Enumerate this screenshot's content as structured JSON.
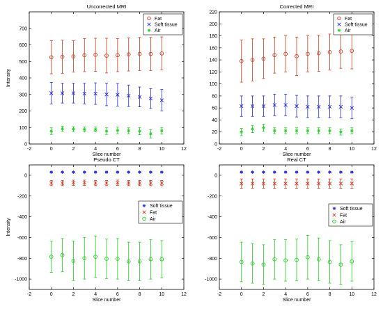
{
  "chart_data": [
    {
      "type": "scatter",
      "title": "Uncorrected MRI",
      "xlabel": "Slice number",
      "ylabel": "Intensity",
      "xlim": [
        -2,
        12
      ],
      "ylim": [
        0,
        800
      ],
      "xticks": [
        "-2",
        "0",
        "2",
        "4",
        "6",
        "8",
        "10",
        "12"
      ],
      "yticks": [
        "0",
        "100",
        "200",
        "300",
        "400",
        "500",
        "600",
        "700"
      ],
      "grid": false,
      "legend": "top-right",
      "x": [
        0,
        1,
        2,
        3,
        4,
        5,
        6,
        7,
        8,
        9,
        10
      ],
      "series": [
        {
          "name": "Fat",
          "marker": "o",
          "color": "#cc3a1f",
          "values": [
            525,
            528,
            530,
            538,
            540,
            535,
            538,
            542,
            545,
            545,
            548
          ],
          "err": [
            100,
            100,
            95,
            100,
            100,
            105,
            100,
            100,
            100,
            100,
            100
          ]
        },
        {
          "name": "Soft tissue",
          "marker": "x",
          "color": "#2a2ad8",
          "values": [
            308,
            308,
            308,
            305,
            305,
            300,
            298,
            292,
            285,
            275,
            265
          ],
          "err": [
            65,
            60,
            60,
            62,
            65,
            68,
            68,
            65,
            60,
            60,
            65
          ]
        },
        {
          "name": "Air",
          "marker": "*",
          "color": "#22cc22",
          "values": [
            78,
            92,
            90,
            88,
            88,
            78,
            82,
            80,
            78,
            62,
            80
          ],
          "err": [
            20,
            15,
            15,
            15,
            15,
            20,
            20,
            18,
            22,
            25,
            20
          ]
        }
      ]
    },
    {
      "type": "scatter",
      "title": "Corrected MRI",
      "xlabel": "Slice number",
      "ylabel": "",
      "xlim": [
        -2,
        12
      ],
      "ylim": [
        0,
        220
      ],
      "xticks": [
        "-2",
        "0",
        "2",
        "4",
        "6",
        "8",
        "10",
        "12"
      ],
      "yticks": [
        "0",
        "20",
        "40",
        "60",
        "80",
        "100",
        "120",
        "140",
        "160",
        "180",
        "200",
        "220"
      ],
      "grid": false,
      "legend": "top-right",
      "x": [
        0,
        1,
        2,
        3,
        4,
        5,
        6,
        7,
        8,
        9,
        10
      ],
      "series": [
        {
          "name": "Fat",
          "marker": "o",
          "color": "#cc3a1f",
          "values": [
            138,
            140,
            142,
            148,
            150,
            146,
            150,
            151,
            153,
            154,
            155
          ],
          "err": [
            35,
            35,
            33,
            30,
            30,
            32,
            30,
            30,
            30,
            28,
            30
          ]
        },
        {
          "name": "Soft tissue",
          "marker": "x",
          "color": "#2a2ad8",
          "values": [
            63,
            63,
            63,
            65,
            65,
            63,
            62,
            62,
            62,
            62,
            60
          ],
          "err": [
            17,
            17,
            17,
            18,
            18,
            18,
            18,
            18,
            18,
            18,
            18
          ]
        },
        {
          "name": "Air",
          "marker": "*",
          "color": "#22cc22",
          "values": [
            20,
            25,
            27,
            22,
            22,
            22,
            22,
            22,
            22,
            20,
            22
          ],
          "err": [
            6,
            6,
            6,
            5,
            5,
            5,
            5,
            5,
            5,
            5,
            5
          ]
        }
      ]
    },
    {
      "type": "scatter",
      "title": "Pseudo CT",
      "xlabel": "Slice number",
      "ylabel": "Intensity",
      "xlim": [
        -2,
        12
      ],
      "ylim": [
        -1100,
        100
      ],
      "xticks": [
        "-2",
        "0",
        "2",
        "4",
        "6",
        "8",
        "10",
        "12"
      ],
      "yticks": [
        "-1000",
        "-800",
        "-600",
        "-400",
        "-200",
        "0"
      ],
      "grid": false,
      "legend": "middle-right",
      "x": [
        0,
        1,
        2,
        3,
        4,
        5,
        6,
        7,
        8,
        9,
        10
      ],
      "series": [
        {
          "name": "Soft tissue",
          "marker": "*",
          "color": "#2a2ad8",
          "values": [
            30,
            30,
            30,
            30,
            30,
            30,
            30,
            30,
            30,
            30,
            30
          ],
          "err": [
            5,
            5,
            5,
            5,
            5,
            5,
            5,
            5,
            5,
            5,
            5
          ]
        },
        {
          "name": "Fat",
          "marker": "x",
          "color": "#cc3a1f",
          "values": [
            -75,
            -75,
            -72,
            -72,
            -75,
            -75,
            -72,
            -75,
            -75,
            -75,
            -75
          ],
          "err": [
            25,
            25,
            25,
            25,
            25,
            25,
            25,
            25,
            25,
            25,
            25
          ]
        },
        {
          "name": "Air",
          "marker": "o",
          "color": "#22cc22",
          "values": [
            -785,
            -770,
            -825,
            -800,
            -785,
            -805,
            -805,
            -830,
            -830,
            -810,
            -810
          ],
          "err": [
            150,
            160,
            190,
            200,
            200,
            190,
            195,
            185,
            185,
            190,
            180
          ]
        }
      ]
    },
    {
      "type": "scatter",
      "title": "Real CT",
      "xlabel": "Slice number",
      "ylabel": "",
      "xlim": [
        -2,
        12
      ],
      "ylim": [
        -1100,
        100
      ],
      "xticks": [
        "-2",
        "0",
        "2",
        "4",
        "6",
        "8",
        "10",
        "12"
      ],
      "yticks": [
        "-1000",
        "-800",
        "-600",
        "-400",
        "-200",
        "0"
      ],
      "grid": false,
      "legend": "middle-right",
      "x": [
        0,
        1,
        2,
        3,
        4,
        5,
        6,
        7,
        8,
        9,
        10
      ],
      "series": [
        {
          "name": "Soft tissue",
          "marker": "*",
          "color": "#2a2ad8",
          "values": [
            30,
            30,
            30,
            30,
            30,
            30,
            30,
            30,
            30,
            30,
            30
          ],
          "err": [
            5,
            5,
            5,
            5,
            5,
            5,
            5,
            5,
            5,
            5,
            5
          ]
        },
        {
          "name": "Fat",
          "marker": "x",
          "color": "#cc3a1f",
          "values": [
            -80,
            -80,
            -80,
            -80,
            -80,
            -80,
            -80,
            -80,
            -80,
            -80,
            -80
          ],
          "err": [
            45,
            45,
            45,
            45,
            45,
            45,
            45,
            45,
            45,
            45,
            45
          ]
        },
        {
          "name": "Air",
          "marker": "o",
          "color": "#22cc22",
          "values": [
            -835,
            -850,
            -860,
            -810,
            -820,
            -815,
            -790,
            -810,
            -835,
            -860,
            -830
          ],
          "err": [
            190,
            190,
            190,
            190,
            200,
            200,
            210,
            205,
            205,
            190,
            190
          ]
        }
      ]
    }
  ]
}
